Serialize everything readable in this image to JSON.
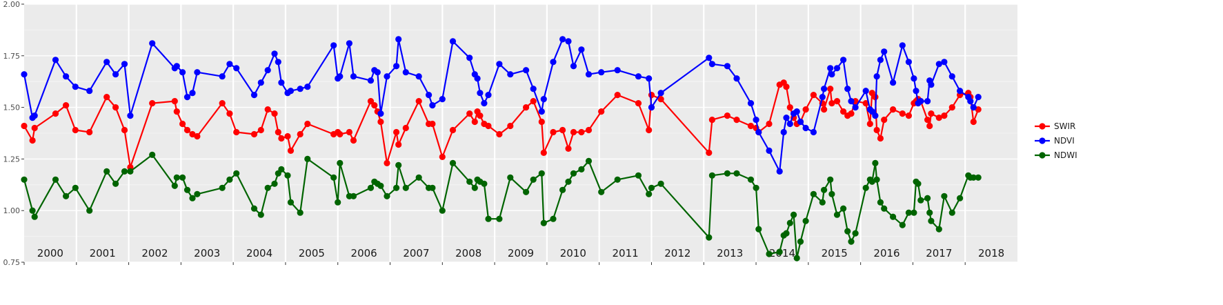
{
  "chart_data": {
    "type": "line",
    "title": "",
    "xlabel": "",
    "ylabel": "",
    "ylim": [
      0.75,
      2.0
    ],
    "xlim": [
      2000.0,
      2019.0
    ],
    "grid": true,
    "legend_position": "right",
    "y_ticks": [
      "0.75",
      "1.00",
      "1.25",
      "1.50",
      "1.75",
      "2.00"
    ],
    "year_labels": [
      "2000",
      "2001",
      "2002",
      "2003",
      "2004",
      "2005",
      "2006",
      "2007",
      "2008",
      "2009",
      "2010",
      "2011",
      "2012",
      "2013",
      "2014",
      "2015",
      "2016",
      "2017",
      "2018"
    ],
    "series": [
      {
        "name": "SWIR",
        "color": "#ff0000",
        "x": [
          2000.0,
          2000.16,
          2000.2,
          2000.6,
          2000.8,
          2000.98,
          2001.25,
          2001.58,
          2001.75,
          2001.92,
          2002.03,
          2002.45,
          2002.88,
          2002.92,
          2003.03,
          2003.12,
          2003.22,
          2003.31,
          2003.79,
          2003.93,
          2004.06,
          2004.4,
          2004.53,
          2004.66,
          2004.79,
          2004.86,
          2004.92,
          2005.04,
          2005.1,
          2005.28,
          2005.42,
          2005.92,
          2006.0,
          2006.04,
          2006.22,
          2006.3,
          2006.63,
          2006.7,
          2006.76,
          2006.82,
          2006.94,
          2007.12,
          2007.16,
          2007.3,
          2007.55,
          2007.74,
          2007.81,
          2008.0,
          2008.2,
          2008.52,
          2008.62,
          2008.67,
          2008.72,
          2008.8,
          2008.88,
          2009.09,
          2009.3,
          2009.6,
          2009.74,
          2009.9,
          2009.94,
          2010.12,
          2010.3,
          2010.41,
          2010.51,
          2010.66,
          2010.8,
          2011.04,
          2011.35,
          2011.75,
          2011.95,
          2012.0,
          2012.18,
          2013.1,
          2013.16,
          2013.45,
          2013.63,
          2014.25,
          2014.45,
          2014.53,
          2014.58,
          2014.65,
          2014.72,
          2014.78,
          2014.85,
          2014.95,
          2015.1,
          2015.27,
          2015.3,
          2015.42,
          2015.45,
          2015.55,
          2015.67,
          2015.75,
          2015.82,
          2015.9,
          2016.1,
          2016.18,
          2016.22,
          2016.28,
          2016.31,
          2016.38,
          2016.45,
          2016.62,
          2016.8,
          2016.92,
          2017.02,
          2017.06,
          2017.1,
          2017.15,
          2017.28,
          2017.32,
          2017.35,
          2018.06,
          2018.1,
          2018.16,
          2018.25,
          2018.28,
          2018.32,
          2018.36,
          2018.4,
          2018.45,
          2018.6,
          2018.95,
          2019.05,
          2019.1,
          2019.15
        ]
      },
      {
        "name": "NDVI",
        "color": "#0000ff",
        "x": []
      },
      {
        "name": "NDWI",
        "color": "#006400",
        "x": []
      }
    ]
  },
  "legend": {
    "entries": [
      "SWIR",
      "NDVI",
      "NDWI"
    ]
  }
}
